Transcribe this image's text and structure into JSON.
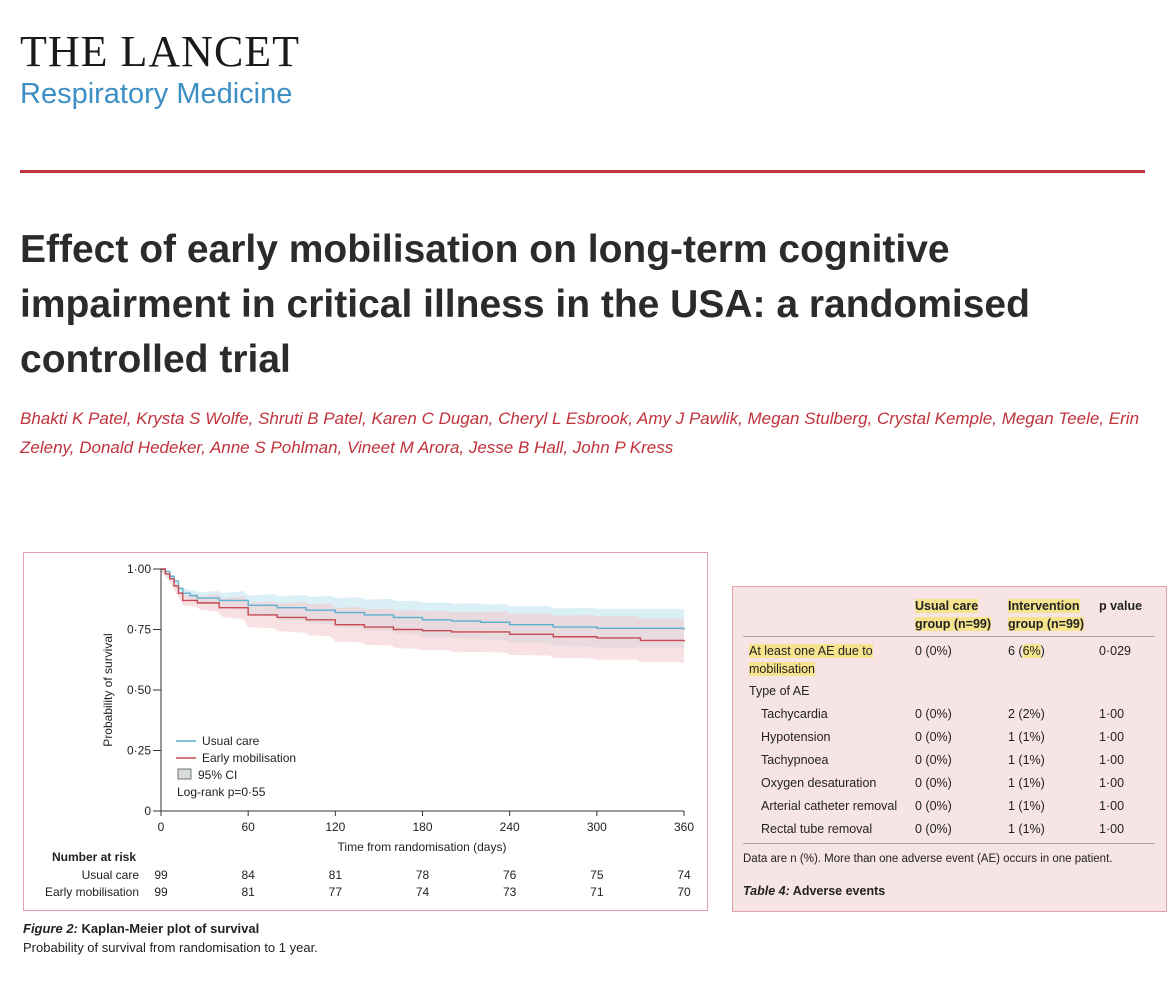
{
  "journal": {
    "name": "THE LANCET",
    "subtitle": "Respiratory Medicine"
  },
  "article": {
    "title": "Effect of early mobilisation on long-term cognitive impairment in critical illness in the USA: a randomised controlled trial",
    "authors": "Bhakti K Patel, Krysta S Wolfe, Shruti B Patel, Karen C Dugan, Cheryl L Esbrook, Amy J Pawlik, Megan Stulberg, Crystal Kemple, Megan Teele, Erin Zeleny, Donald Hedeker, Anne S Pohlman, Vineet M Arora, Jesse B Hall, John P Kress"
  },
  "chart_data": {
    "type": "line",
    "title": "Kaplan-Meier plot of survival",
    "xlabel": "Time from randomisation (days)",
    "ylabel": "Probability of survival",
    "xlim": [
      0,
      360
    ],
    "ylim": [
      0,
      1
    ],
    "x_ticks": [
      "0",
      "60",
      "120",
      "180",
      "240",
      "300",
      "360"
    ],
    "y_ticks": [
      "0",
      "0·25",
      "0·50",
      "0·75",
      "1·00"
    ],
    "series": [
      {
        "name": "Usual care",
        "color": "#5fb0cf",
        "points": [
          [
            0,
            1.0
          ],
          [
            3,
            0.99
          ],
          [
            6,
            0.97
          ],
          [
            9,
            0.95
          ],
          [
            12,
            0.92
          ],
          [
            15,
            0.9
          ],
          [
            20,
            0.89
          ],
          [
            25,
            0.88
          ],
          [
            40,
            0.87
          ],
          [
            60,
            0.85
          ],
          [
            80,
            0.84
          ],
          [
            100,
            0.83
          ],
          [
            120,
            0.82
          ],
          [
            140,
            0.81
          ],
          [
            160,
            0.8
          ],
          [
            180,
            0.79
          ],
          [
            200,
            0.785
          ],
          [
            220,
            0.78
          ],
          [
            240,
            0.77
          ],
          [
            270,
            0.76
          ],
          [
            300,
            0.755
          ],
          [
            360,
            0.75
          ]
        ]
      },
      {
        "name": "Early mobilisation",
        "color": "#c74a52",
        "points": [
          [
            0,
            1.0
          ],
          [
            3,
            0.98
          ],
          [
            6,
            0.96
          ],
          [
            9,
            0.93
          ],
          [
            12,
            0.9
          ],
          [
            15,
            0.87
          ],
          [
            25,
            0.86
          ],
          [
            40,
            0.84
          ],
          [
            60,
            0.81
          ],
          [
            80,
            0.8
          ],
          [
            100,
            0.79
          ],
          [
            120,
            0.77
          ],
          [
            140,
            0.76
          ],
          [
            160,
            0.75
          ],
          [
            180,
            0.745
          ],
          [
            200,
            0.74
          ],
          [
            240,
            0.73
          ],
          [
            270,
            0.72
          ],
          [
            300,
            0.715
          ],
          [
            330,
            0.705
          ],
          [
            360,
            0.7
          ]
        ]
      }
    ],
    "ci_band": {
      "Usual care": {
        "color": "#bde1ef",
        "halfwidth": [
          0.01,
          0.04,
          0.06,
          0.07,
          0.075,
          0.08,
          0.08
        ]
      },
      "Early mobilisation": {
        "color": "#f3c9cc",
        "halfwidth": [
          0.01,
          0.05,
          0.07,
          0.08,
          0.085,
          0.09,
          0.09
        ]
      }
    },
    "legend": {
      "usual_care": "Usual care",
      "early_mobilisation": "Early mobilisation",
      "ci": "95% CI",
      "logrank": "Log-rank p=0·55",
      "placement": "bottom-left"
    },
    "number_at_risk": {
      "header": "Number at risk",
      "rows": [
        {
          "label": "Usual care",
          "values": [
            "99",
            "84",
            "81",
            "78",
            "76",
            "75",
            "74"
          ]
        },
        {
          "label": "Early mobilisation",
          "values": [
            "99",
            "81",
            "77",
            "74",
            "73",
            "71",
            "70"
          ]
        }
      ]
    }
  },
  "figure": {
    "label": "Figure 2:",
    "title": "Kaplan-Meier plot of survival",
    "caption": "Probability of survival from randomisation to 1 year."
  },
  "table": {
    "headers": {
      "usual_care_1": "Usual care",
      "usual_care_2": "group (n=99)",
      "intervention_1": "Intervention",
      "intervention_2": "group (n=99)",
      "p_value": "p value"
    },
    "main_row": {
      "label_1": "At least one AE due to",
      "label_2": "mobilisation",
      "usual": "0 (0%)",
      "intervention_pre": "6 (",
      "intervention_hl": "6%",
      "intervention_post": ")",
      "p": "0·029"
    },
    "type_label": "Type of AE",
    "rows": [
      {
        "label": "Tachycardia",
        "usual": "0 (0%)",
        "intervention": "2 (2%)",
        "p": "1·00"
      },
      {
        "label": "Hypotension",
        "usual": "0 (0%)",
        "intervention": "1 (1%)",
        "p": "1·00"
      },
      {
        "label": "Tachypnoea",
        "usual": "0 (0%)",
        "intervention": "1 (1%)",
        "p": "1·00"
      },
      {
        "label": "Oxygen desaturation",
        "usual": "0 (0%)",
        "intervention": "1 (1%)",
        "p": "1·00"
      },
      {
        "label": "Arterial catheter removal",
        "usual": "0 (0%)",
        "intervention": "1 (1%)",
        "p": "1·00"
      },
      {
        "label": "Rectal tube removal",
        "usual": "0 (0%)",
        "intervention": "1 (1%)",
        "p": "1·00"
      }
    ],
    "note": "Data are n (%). More than one adverse event (AE) occurs in one patient.",
    "caption_label": "Table 4:",
    "caption_title": "Adverse events"
  }
}
